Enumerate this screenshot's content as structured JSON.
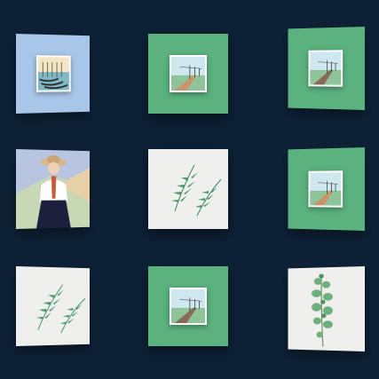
{
  "gallery": {
    "background": "#0d2136",
    "tiles": [
      {
        "icon": "gondolas-photo-icon",
        "frame_color": "#a8c6e8"
      },
      {
        "icon": "railway-road-photo-icon",
        "frame_color": "#5bb27e"
      },
      {
        "icon": "railway-road-photo-icon",
        "frame_color": "#5bb27e"
      },
      {
        "icon": "woman-in-hat-illustration-icon",
        "frame_color": "#b7c5e0"
      },
      {
        "icon": "fern-leaves-illustration-icon",
        "frame_color": "#efefed"
      },
      {
        "icon": "railway-road-photo-icon",
        "frame_color": "#5bb27e"
      },
      {
        "icon": "fern-leaves-illustration-icon",
        "frame_color": "#efefed"
      },
      {
        "icon": "railway-road-photo-icon",
        "frame_color": "#5bb27e"
      },
      {
        "icon": "eucalyptus-branch-illustration-icon",
        "frame_color": "#efefed"
      }
    ]
  }
}
